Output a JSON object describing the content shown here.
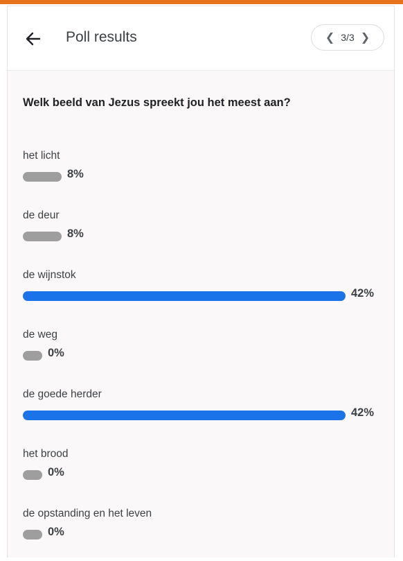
{
  "header": {
    "title": "Poll results",
    "pager": {
      "prev_icon": "chevron-left-icon",
      "label": "3/3",
      "next_icon": "chevron-right-icon"
    }
  },
  "poll": {
    "question": "Welk beeld van Jezus spreekt jou het meest aan?",
    "options": [
      {
        "label": "het licht",
        "percent": "8%",
        "value": 8,
        "leading": false
      },
      {
        "label": "de deur",
        "percent": "8%",
        "value": 8,
        "leading": false
      },
      {
        "label": "de wijnstok",
        "percent": "42%",
        "value": 42,
        "leading": true
      },
      {
        "label": "de weg",
        "percent": "0%",
        "value": 0,
        "leading": false
      },
      {
        "label": "de goede herder",
        "percent": "42%",
        "value": 42,
        "leading": true
      },
      {
        "label": "het brood",
        "percent": "0%",
        "value": 0,
        "leading": false
      },
      {
        "label": "de opstanding en het leven",
        "percent": "0%",
        "value": 0,
        "leading": false
      }
    ]
  },
  "colors": {
    "accent_stripe": "#e8711c",
    "leading_bar": "#1a73e8",
    "other_bar": "#9e9e9e"
  }
}
